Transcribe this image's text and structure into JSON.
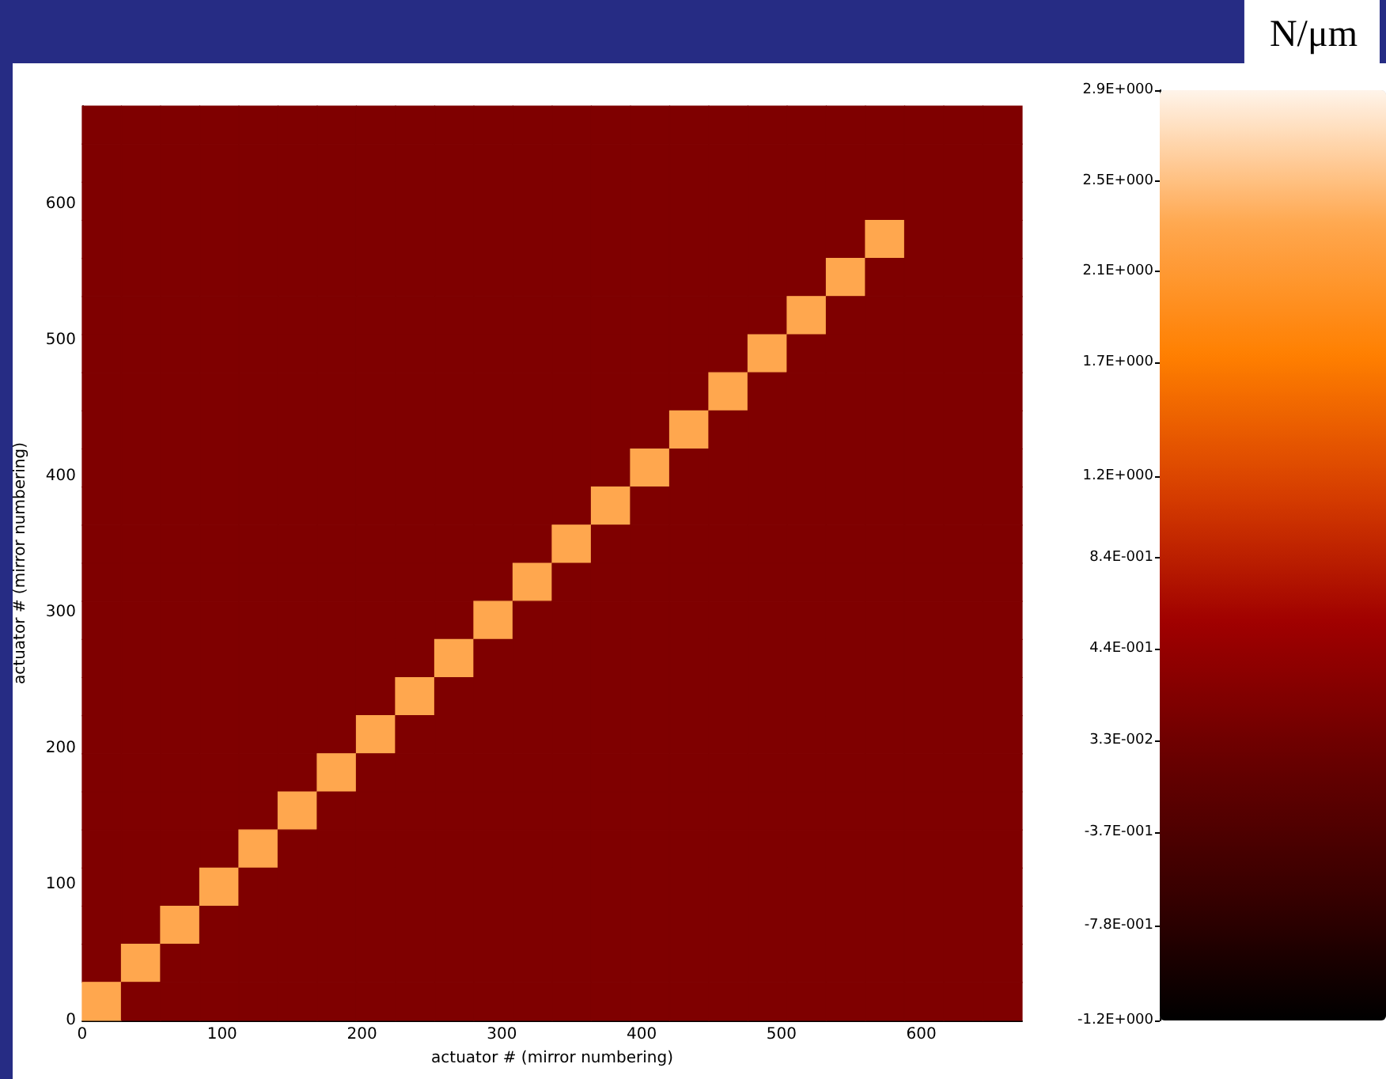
{
  "chart_data": {
    "type": "heatmap",
    "xlabel": "actuator # (mirror numbering)",
    "ylabel": "actuator # (mirror numbering)",
    "clabel": "N/μm",
    "xlim": [
      0,
      672
    ],
    "xticks": [
      0,
      100,
      200,
      300,
      400,
      500,
      600
    ],
    "ylim": [
      0,
      672
    ],
    "yticks": [
      0,
      100,
      200,
      300,
      400,
      500,
      600
    ],
    "clim": [
      -1.2,
      2.9
    ],
    "cticks": [
      {
        "value": -1.2,
        "label": "-1.2E+000"
      },
      {
        "value": -0.78,
        "label": "-7.8E-001"
      },
      {
        "value": -0.37,
        "label": "-3.7E-001"
      },
      {
        "value": 0.033,
        "label": "3.3E-002"
      },
      {
        "value": 0.44,
        "label": "4.4E-001"
      },
      {
        "value": 0.84,
        "label": "8.4E-001"
      },
      {
        "value": 1.2,
        "label": "1.2E+000"
      },
      {
        "value": 1.7,
        "label": "1.7E+000"
      },
      {
        "value": 2.1,
        "label": "2.1E+000"
      },
      {
        "value": 2.5,
        "label": "2.5E+000"
      },
      {
        "value": 2.9,
        "label": "2.9E+000"
      }
    ],
    "cells": [
      [
        0.2,
        0.2,
        0.2,
        0.2,
        0.2,
        0.2,
        0.2,
        0.2,
        0.2,
        0.2,
        0.2,
        0.2,
        0.2,
        0.2,
        0.2,
        0.2,
        0.2,
        0.2,
        0.2,
        0.2,
        0.2,
        0.2,
        0.2,
        0.2
      ],
      [
        0.2,
        0.2,
        0.2,
        0.2,
        0.2,
        0.2,
        0.2,
        0.2,
        0.2,
        0.2,
        0.2,
        0.2,
        0.2,
        0.2,
        0.2,
        0.2,
        0.2,
        0.2,
        0.2,
        0.2,
        0.2,
        0.2,
        0.2,
        0.2
      ],
      [
        0.2,
        0.2,
        0.2,
        0.2,
        0.2,
        0.2,
        0.2,
        0.2,
        0.2,
        0.2,
        0.2,
        0.2,
        0.2,
        0.2,
        0.2,
        0.2,
        0.2,
        0.2,
        0.2,
        0.2,
        0.2,
        0.2,
        0.2,
        0.2
      ],
      [
        0.2,
        0.2,
        0.2,
        0.2,
        0.2,
        0.2,
        0.2,
        0.2,
        0.2,
        0.2,
        0.2,
        0.2,
        0.2,
        0.2,
        0.2,
        0.2,
        0.2,
        0.2,
        0.2,
        0.2,
        2.3,
        0.2,
        0.2,
        0.2
      ],
      [
        0.2,
        0.2,
        0.2,
        0.2,
        0.2,
        0.2,
        0.2,
        0.2,
        0.2,
        0.2,
        0.2,
        0.2,
        0.2,
        0.2,
        0.2,
        0.2,
        0.2,
        0.2,
        0.2,
        2.3,
        0.2,
        0.2,
        0.2,
        0.2
      ],
      [
        0.2,
        0.2,
        0.2,
        0.2,
        0.2,
        0.2,
        0.2,
        0.2,
        0.2,
        0.2,
        0.2,
        0.2,
        0.2,
        0.2,
        0.2,
        0.2,
        0.2,
        0.2,
        2.3,
        0.2,
        0.2,
        0.2,
        0.2,
        0.2
      ],
      [
        0.2,
        0.2,
        0.2,
        0.2,
        0.2,
        0.2,
        0.2,
        0.2,
        0.2,
        0.2,
        0.2,
        0.2,
        0.2,
        0.2,
        0.2,
        0.2,
        0.2,
        2.3,
        0.2,
        0.2,
        0.2,
        0.2,
        0.2,
        0.2
      ],
      [
        0.2,
        0.2,
        0.2,
        0.2,
        0.2,
        0.2,
        0.2,
        0.2,
        0.2,
        0.2,
        0.2,
        0.2,
        0.2,
        0.2,
        0.2,
        0.2,
        2.3,
        0.2,
        0.2,
        0.2,
        0.2,
        0.2,
        0.2,
        0.2
      ],
      [
        0.2,
        0.2,
        0.2,
        0.2,
        0.2,
        0.2,
        0.2,
        0.2,
        0.2,
        0.2,
        0.2,
        0.2,
        0.2,
        0.2,
        0.2,
        2.3,
        0.2,
        0.2,
        0.2,
        0.2,
        0.2,
        0.2,
        0.2,
        0.2
      ],
      [
        0.2,
        0.2,
        0.2,
        0.2,
        0.2,
        0.2,
        0.2,
        0.2,
        0.2,
        0.2,
        0.2,
        0.2,
        0.2,
        0.2,
        2.3,
        0.2,
        0.2,
        0.2,
        0.2,
        0.2,
        0.2,
        0.2,
        0.2,
        0.2
      ],
      [
        0.2,
        0.2,
        0.2,
        0.2,
        0.2,
        0.2,
        0.2,
        0.2,
        0.2,
        0.2,
        0.2,
        0.2,
        0.2,
        2.3,
        0.2,
        0.2,
        0.2,
        0.2,
        0.2,
        0.2,
        0.2,
        0.2,
        0.2,
        0.2
      ],
      [
        0.2,
        0.2,
        0.2,
        0.2,
        0.2,
        0.2,
        0.2,
        0.2,
        0.2,
        0.2,
        0.2,
        0.2,
        2.3,
        0.2,
        0.2,
        0.2,
        0.2,
        0.2,
        0.2,
        0.2,
        0.2,
        0.2,
        0.2,
        0.2
      ],
      [
        0.2,
        0.2,
        0.2,
        0.2,
        0.2,
        0.2,
        0.2,
        0.2,
        0.2,
        0.2,
        0.2,
        2.3,
        0.2,
        0.2,
        0.2,
        0.2,
        0.2,
        0.2,
        0.2,
        0.2,
        0.2,
        0.2,
        0.2,
        0.2
      ],
      [
        0.2,
        0.2,
        0.2,
        0.2,
        0.2,
        0.2,
        0.2,
        0.2,
        0.2,
        0.2,
        2.3,
        0.2,
        0.2,
        0.2,
        0.2,
        0.2,
        0.2,
        0.2,
        0.2,
        0.2,
        0.2,
        0.2,
        0.2,
        0.2
      ],
      [
        0.2,
        0.2,
        0.2,
        0.2,
        0.2,
        0.2,
        0.2,
        0.2,
        0.2,
        2.3,
        0.2,
        0.2,
        0.2,
        0.2,
        0.2,
        0.2,
        0.2,
        0.2,
        0.2,
        0.2,
        0.2,
        0.2,
        0.2,
        0.2
      ],
      [
        0.2,
        0.2,
        0.2,
        0.2,
        0.2,
        0.2,
        0.2,
        0.2,
        2.3,
        0.2,
        0.2,
        0.2,
        0.2,
        0.2,
        0.2,
        0.2,
        0.2,
        0.2,
        0.2,
        0.2,
        0.2,
        0.2,
        0.2,
        0.2
      ],
      [
        0.2,
        0.2,
        0.2,
        0.2,
        0.2,
        0.2,
        0.2,
        2.3,
        0.2,
        0.2,
        0.2,
        0.2,
        0.2,
        0.2,
        0.2,
        0.2,
        0.2,
        0.2,
        0.2,
        0.2,
        0.2,
        0.2,
        0.2,
        0.2
      ],
      [
        0.2,
        0.2,
        0.2,
        0.2,
        0.2,
        0.2,
        2.3,
        0.2,
        0.2,
        0.2,
        0.2,
        0.2,
        0.2,
        0.2,
        0.2,
        0.2,
        0.2,
        0.2,
        0.2,
        0.2,
        0.2,
        0.2,
        0.2,
        0.2
      ],
      [
        0.2,
        0.2,
        0.2,
        0.2,
        0.2,
        2.3,
        0.2,
        0.2,
        0.2,
        0.2,
        0.2,
        0.2,
        0.2,
        0.2,
        0.2,
        0.2,
        0.2,
        0.2,
        0.2,
        0.2,
        0.2,
        0.2,
        0.2,
        0.2
      ],
      [
        0.2,
        0.2,
        0.2,
        0.2,
        2.3,
        0.2,
        0.2,
        0.2,
        0.2,
        0.2,
        0.2,
        0.2,
        0.2,
        0.2,
        0.2,
        0.2,
        0.2,
        0.2,
        0.2,
        0.2,
        0.2,
        0.2,
        0.2,
        0.2
      ],
      [
        0.2,
        0.2,
        0.2,
        2.3,
        0.2,
        0.2,
        0.2,
        0.2,
        0.2,
        0.2,
        0.2,
        0.2,
        0.2,
        0.2,
        0.2,
        0.2,
        0.2,
        0.2,
        0.2,
        0.2,
        0.2,
        0.2,
        0.2,
        0.2
      ],
      [
        0.2,
        0.2,
        2.3,
        0.2,
        0.2,
        0.2,
        0.2,
        0.2,
        0.2,
        0.2,
        0.2,
        0.2,
        0.2,
        0.2,
        0.2,
        0.2,
        0.2,
        0.2,
        0.2,
        0.2,
        0.2,
        0.2,
        0.2,
        0.2
      ],
      [
        0.2,
        2.3,
        0.2,
        0.2,
        0.2,
        0.2,
        0.2,
        0.2,
        0.2,
        0.2,
        0.2,
        0.2,
        0.2,
        0.2,
        0.2,
        0.2,
        0.2,
        0.2,
        0.2,
        0.2,
        0.2,
        0.2,
        0.2,
        0.2
      ],
      [
        2.3,
        0.2,
        0.2,
        0.2,
        0.2,
        0.2,
        0.2,
        0.2,
        0.2,
        0.2,
        0.2,
        0.2,
        0.2,
        0.2,
        0.2,
        0.2,
        0.2,
        0.2,
        0.2,
        0.2,
        0.2,
        0.2,
        0.2,
        0.2
      ]
    ]
  }
}
